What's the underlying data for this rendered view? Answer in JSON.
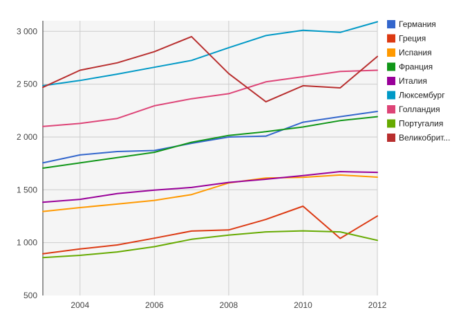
{
  "chart_data": {
    "type": "line",
    "title": "",
    "xlabel": "",
    "ylabel": "",
    "xlim": [
      2003,
      2012
    ],
    "ylim": [
      500,
      3100
    ],
    "x": [
      2003,
      2004,
      2005,
      2006,
      2007,
      2008,
      2009,
      2010,
      2011,
      2012
    ],
    "x_ticks": [
      2004,
      2006,
      2008,
      2010,
      2012
    ],
    "x_tick_labels": [
      "2004",
      "2006",
      "2008",
      "2010",
      "2012"
    ],
    "y_ticks": [
      500,
      1000,
      1500,
      2000,
      2500,
      3000
    ],
    "y_tick_labels": [
      "500",
      "1 000",
      "1 500",
      "2 000",
      "2 500",
      "3 000"
    ],
    "grid": true,
    "legend_position": "right",
    "series": [
      {
        "name": "Германия",
        "color": "#3366cc",
        "values": [
          1755,
          1830,
          1862,
          1872,
          1940,
          2000,
          2008,
          2140,
          2192,
          2242
        ]
      },
      {
        "name": "Греция",
        "color": "#dc3912",
        "values": [
          895,
          940,
          978,
          1042,
          1110,
          1120,
          1220,
          1345,
          1040,
          1252
        ]
      },
      {
        "name": "Испания",
        "color": "#ff9900",
        "values": [
          1295,
          1332,
          1365,
          1400,
          1455,
          1565,
          1612,
          1618,
          1640,
          1620
        ]
      },
      {
        "name": "Франция",
        "color": "#109618",
        "values": [
          1705,
          1755,
          1805,
          1855,
          1950,
          2015,
          2050,
          2095,
          2155,
          2192
        ]
      },
      {
        "name": "Италия",
        "color": "#990099",
        "values": [
          1382,
          1410,
          1465,
          1497,
          1522,
          1570,
          1600,
          1635,
          1672,
          1665
        ]
      },
      {
        "name": "Люксембург",
        "color": "#0099c6",
        "values": [
          2485,
          2535,
          2595,
          2660,
          2725,
          2845,
          2960,
          3010,
          2990,
          3090
        ]
      },
      {
        "name": "Голландия",
        "color": "#dd4477",
        "values": [
          2100,
          2128,
          2175,
          2295,
          2362,
          2410,
          2522,
          2570,
          2620,
          2632
        ]
      },
      {
        "name": "Португалия",
        "color": "#66aa00",
        "values": [
          858,
          880,
          912,
          962,
          1032,
          1072,
          1102,
          1112,
          1102,
          1022
        ]
      },
      {
        "name": "Великобрит...",
        "color": "#b82e2e",
        "values": [
          2470,
          2632,
          2702,
          2807,
          2950,
          2600,
          2333,
          2485,
          2465,
          2762
        ]
      }
    ]
  }
}
